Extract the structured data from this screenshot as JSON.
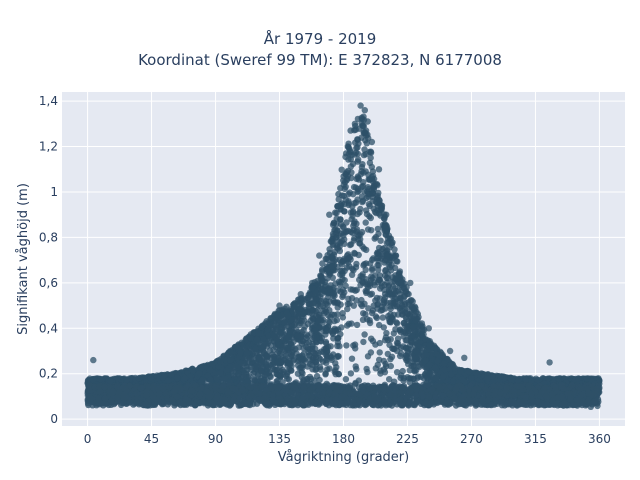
{
  "chart_data": {
    "type": "scatter",
    "title_line1": "År 1979 - 2019",
    "title_line2": "Koordinat (Sweref 99 TM): E 372823, N 6177008",
    "xlabel": "Vågriktning (grader)",
    "ylabel": "Signifikant våghöjd (m)",
    "xlim": [
      -18,
      378
    ],
    "ylim": [
      -0.03,
      1.44
    ],
    "xticks": [
      0,
      45,
      90,
      135,
      180,
      225,
      270,
      315,
      360
    ],
    "xtick_labels": [
      "0",
      "45",
      "90",
      "135",
      "180",
      "225",
      "270",
      "315",
      "360"
    ],
    "yticks": [
      0,
      0.2,
      0.4,
      0.6,
      0.8,
      1.0,
      1.2,
      1.4
    ],
    "ytick_labels": [
      "0",
      "0,2",
      "0,4",
      "0,6",
      "0,8",
      "1",
      "1,2",
      "1,4"
    ],
    "grid": true,
    "marker_color": "#2e5068",
    "plot_background": "#e5e9f2",
    "envelope_points": [
      {
        "x": 0,
        "y_max": 0.18
      },
      {
        "x": 30,
        "y_max": 0.18
      },
      {
        "x": 60,
        "y_max": 0.2
      },
      {
        "x": 90,
        "y_max": 0.25
      },
      {
        "x": 110,
        "y_max": 0.35
      },
      {
        "x": 135,
        "y_max": 0.48
      },
      {
        "x": 155,
        "y_max": 0.55
      },
      {
        "x": 170,
        "y_max": 0.75
      },
      {
        "x": 180,
        "y_max": 1.15
      },
      {
        "x": 193,
        "y_max": 1.38
      },
      {
        "x": 205,
        "y_max": 1.0
      },
      {
        "x": 220,
        "y_max": 0.65
      },
      {
        "x": 240,
        "y_max": 0.35
      },
      {
        "x": 260,
        "y_max": 0.22
      },
      {
        "x": 300,
        "y_max": 0.18
      },
      {
        "x": 360,
        "y_max": 0.18
      }
    ],
    "outliers": [
      {
        "x": 4,
        "y": 0.26
      },
      {
        "x": 325,
        "y": 0.25
      },
      {
        "x": 192,
        "y": 1.38
      },
      {
        "x": 195,
        "y": 1.36
      },
      {
        "x": 197,
        "y": 1.31
      },
      {
        "x": 188,
        "y": 1.3
      },
      {
        "x": 185,
        "y": 1.27
      },
      {
        "x": 200,
        "y": 1.22
      },
      {
        "x": 183,
        "y": 1.2
      },
      {
        "x": 205,
        "y": 1.1
      },
      {
        "x": 210,
        "y": 0.9
      },
      {
        "x": 170,
        "y": 0.9
      },
      {
        "x": 163,
        "y": 0.72
      },
      {
        "x": 158,
        "y": 0.6
      },
      {
        "x": 227,
        "y": 0.6
      },
      {
        "x": 230,
        "y": 0.48
      },
      {
        "x": 240,
        "y": 0.4
      },
      {
        "x": 255,
        "y": 0.3
      },
      {
        "x": 265,
        "y": 0.27
      },
      {
        "x": 135,
        "y": 0.5
      },
      {
        "x": 120,
        "y": 0.38
      },
      {
        "x": 105,
        "y": 0.32
      },
      {
        "x": 150,
        "y": 0.55
      },
      {
        "x": 175,
        "y": 0.8
      }
    ]
  }
}
